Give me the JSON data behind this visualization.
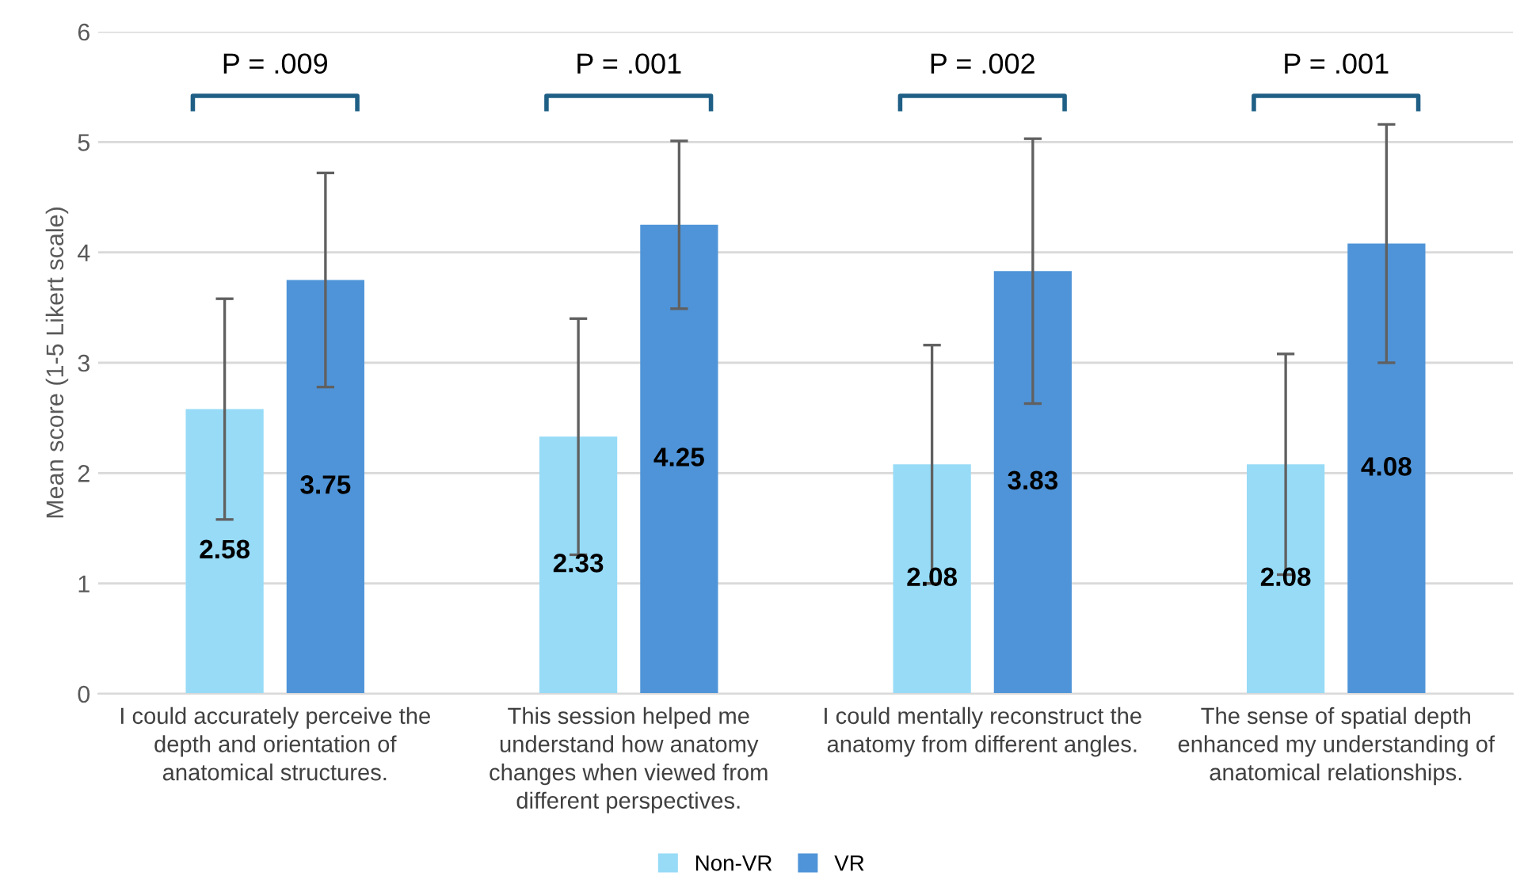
{
  "chart_data": {
    "type": "bar",
    "ylabel": "Mean score (1-5 Likert scale)",
    "categories": [
      "I could accurately perceive the depth and orientation of anatomical structures.",
      "This session helped me understand how anatomy changes when viewed from different perspectives.",
      "I could mentally reconstruct the anatomy from different angles.",
      "The sense of spatial depth enhanced my understanding of anatomical relationships."
    ],
    "series": [
      {
        "name": "Non-VR",
        "color": "#97dbf7",
        "values": [
          2.58,
          2.33,
          2.08,
          2.08
        ],
        "errors": [
          1.0,
          1.07,
          1.08,
          1.0
        ]
      },
      {
        "name": "VR",
        "color": "#4f94d8",
        "values": [
          3.75,
          4.25,
          3.83,
          4.08
        ],
        "errors": [
          0.97,
          0.76,
          1.2,
          1.08
        ]
      }
    ],
    "ylim": [
      0,
      6
    ],
    "yticks": [
      0,
      1,
      2,
      3,
      4,
      5,
      6
    ],
    "grid": "y",
    "legend": "bottom",
    "data_labels": true,
    "annotations": [
      "P = .009",
      "P = .001",
      "P = .002",
      "P = .001"
    ]
  }
}
